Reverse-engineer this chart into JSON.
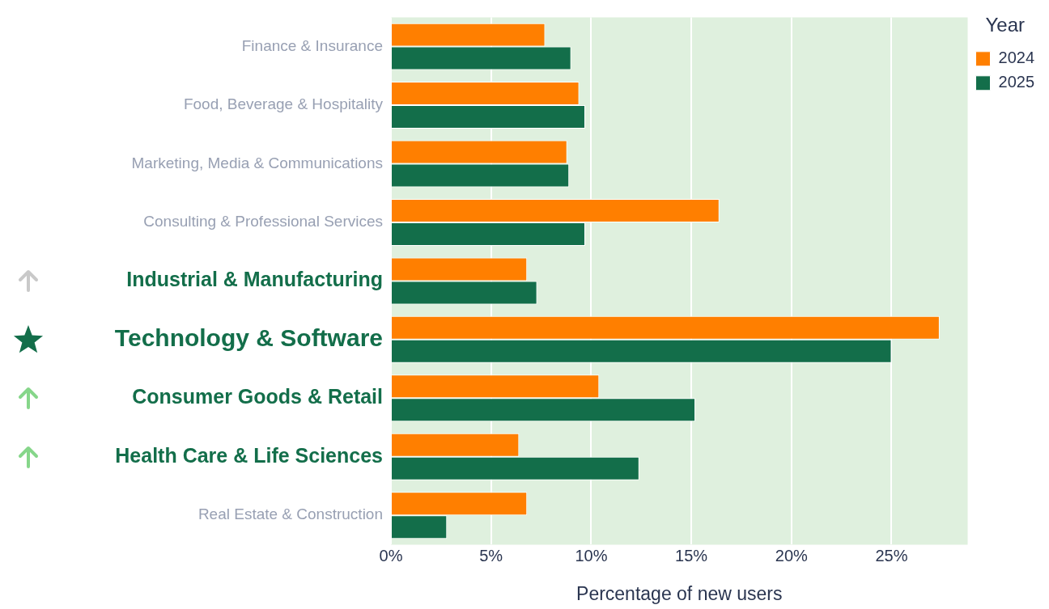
{
  "chart_data": {
    "type": "bar",
    "orientation": "horizontal",
    "xlabel": "Percentage of new users",
    "legend_title": "Year",
    "legend": "top right",
    "grid": "x",
    "categories": [
      "Finance & Insurance",
      "Food, Beverage & Hospitality",
      "Marketing, Media & Communications",
      "Consulting & Professional Services",
      "Industrial & Manufacturing",
      "Technology & Software",
      "Consumer Goods & Retail",
      "Health Care & Life Sciences",
      "Real Estate & Construction"
    ],
    "series": [
      {
        "name": "2024",
        "color": "#ff7f00",
        "values": [
          7.7,
          9.4,
          8.8,
          16.4,
          6.8,
          27.4,
          10.4,
          6.4,
          6.8
        ]
      },
      {
        "name": "2025",
        "color": "#136e4a",
        "values": [
          9.0,
          9.7,
          8.9,
          9.7,
          7.3,
          25.0,
          15.2,
          12.4,
          2.8
        ]
      }
    ],
    "xlim": [
      0,
      28.8
    ],
    "xticks": [
      {
        "value": 0,
        "label": "0%"
      },
      {
        "value": 5,
        "label": "5%"
      },
      {
        "value": 10,
        "label": "10%"
      },
      {
        "value": 15,
        "label": "15%"
      },
      {
        "value": 20,
        "label": "20%"
      },
      {
        "value": 25,
        "label": "25%"
      }
    ]
  }
}
